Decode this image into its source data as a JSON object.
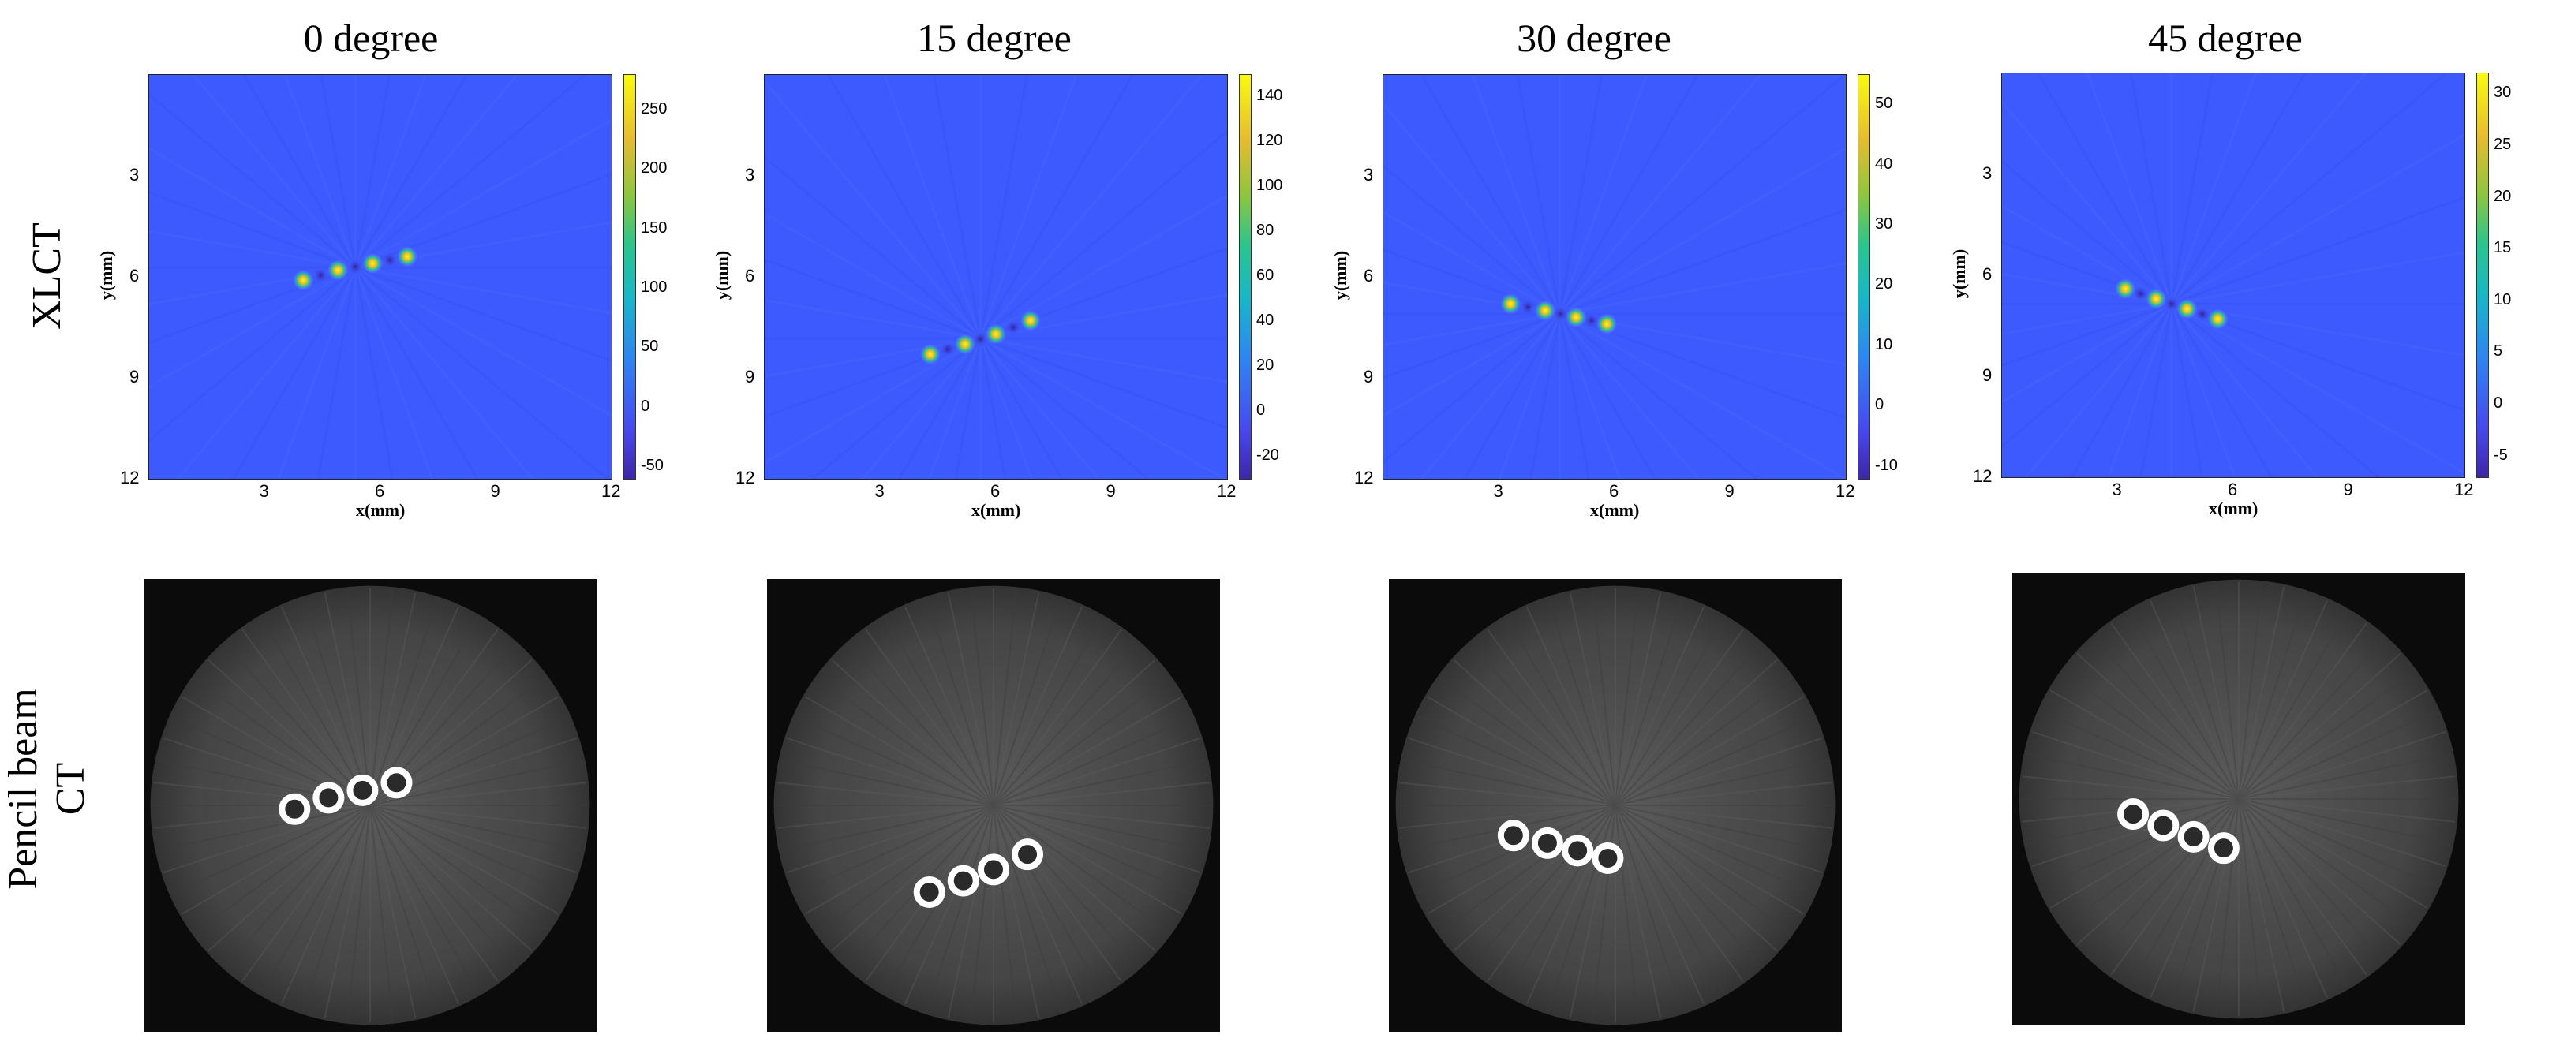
{
  "columns": [
    {
      "title": "0 degree"
    },
    {
      "title": "15 degree"
    },
    {
      "title": "30 degree"
    },
    {
      "title": "45 degree"
    }
  ],
  "rows": {
    "xlct_label": "XLCT",
    "ct_label_line1": "Pencil beam",
    "ct_label_line2": "CT"
  },
  "chart_data": [
    {
      "type": "heatmap",
      "title": "0 degree",
      "xlabel": "x(mm)",
      "ylabel": "y(mm)",
      "xticks": [
        "3",
        "6",
        "9",
        "12"
      ],
      "yticks": [
        "3",
        "6",
        "9",
        "12"
      ],
      "colorbar_ticks": [
        "250",
        "200",
        "150",
        "100",
        "50",
        "0",
        "-50"
      ],
      "colorbar_range": [
        -60,
        280
      ],
      "targets": [
        {
          "x": 4.0,
          "y": 6.1
        },
        {
          "x": 4.9,
          "y": 5.8
        },
        {
          "x": 5.8,
          "y": 5.6
        },
        {
          "x": 6.7,
          "y": 5.4
        }
      ]
    },
    {
      "type": "heatmap",
      "title": "15 degree",
      "xlabel": "x(mm)",
      "ylabel": "y(mm)",
      "xticks": [
        "3",
        "6",
        "9",
        "12"
      ],
      "yticks": [
        "3",
        "6",
        "9",
        "12"
      ],
      "colorbar_ticks": [
        "140",
        "120",
        "100",
        "80",
        "60",
        "40",
        "20",
        "0",
        "-20"
      ],
      "colorbar_range": [
        -30,
        150
      ],
      "targets": [
        {
          "x": 4.3,
          "y": 8.3
        },
        {
          "x": 5.2,
          "y": 8.0
        },
        {
          "x": 6.0,
          "y": 7.7
        },
        {
          "x": 6.9,
          "y": 7.3
        }
      ]
    },
    {
      "type": "heatmap",
      "title": "30 degree",
      "xlabel": "x(mm)",
      "ylabel": "y(mm)",
      "xticks": [
        "3",
        "6",
        "9",
        "12"
      ],
      "yticks": [
        "3",
        "6",
        "9",
        "12"
      ],
      "colorbar_ticks": [
        "50",
        "40",
        "30",
        "20",
        "10",
        "0",
        "-10"
      ],
      "colorbar_range": [
        -12,
        55
      ],
      "targets": [
        {
          "x": 3.3,
          "y": 6.8
        },
        {
          "x": 4.2,
          "y": 7.0
        },
        {
          "x": 5.0,
          "y": 7.2
        },
        {
          "x": 5.8,
          "y": 7.4
        }
      ]
    },
    {
      "type": "heatmap",
      "title": "45 degree",
      "xlabel": "x(mm)",
      "ylabel": "y(mm)",
      "xticks": [
        "3",
        "6",
        "9",
        "12"
      ],
      "yticks": [
        "3",
        "6",
        "9",
        "12"
      ],
      "colorbar_ticks": [
        "30",
        "25",
        "20",
        "15",
        "10",
        "5",
        "0",
        "-5"
      ],
      "colorbar_range": [
        -7,
        32
      ],
      "targets": [
        {
          "x": 3.2,
          "y": 6.4
        },
        {
          "x": 4.0,
          "y": 6.7
        },
        {
          "x": 4.8,
          "y": 7.0
        },
        {
          "x": 5.6,
          "y": 7.3
        }
      ]
    }
  ]
}
